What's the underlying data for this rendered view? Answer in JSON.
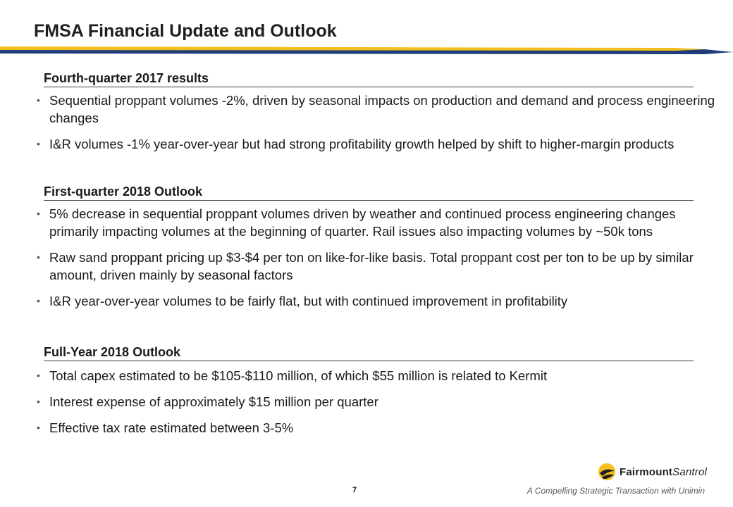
{
  "slide": {
    "title": "FMSA Financial Update and Outlook",
    "brand_colors": {
      "gold": "#f2c01e",
      "navy": "#1f3d7a"
    }
  },
  "sections": [
    {
      "heading": "Fourth-quarter 2017 results",
      "bullets": [
        "Sequential proppant volumes -2%, driven by seasonal impacts on production and demand and process engineering changes",
        "I&R volumes -1% year-over-year but had strong profitability growth helped by shift to higher-margin products"
      ]
    },
    {
      "heading": "First-quarter 2018 Outlook",
      "bullets": [
        "5% decrease in sequential proppant volumes driven by weather and continued process engineering changes primarily impacting volumes at the beginning of quarter. Rail issues also impacting volumes by ~50k tons",
        "Raw sand proppant pricing up $3-$4 per ton on like-for-like basis. Total proppant cost per ton to be up by similar amount, driven mainly by seasonal factors",
        "I&R year-over-year volumes to be fairly flat, but with continued improvement in profitability"
      ]
    },
    {
      "heading": "Full-Year 2018 Outlook",
      "bullets": [
        "Total capex estimated to be $105-$110 million, of which $55 million is related to Kermit",
        "Interest expense of approximately $15 million per quarter",
        "Effective tax rate estimated between 3-5%"
      ]
    }
  ],
  "footer": {
    "page_number": "7",
    "tagline": "A Compelling Strategic Transaction with Unimin",
    "logo_bold": "Fairmount",
    "logo_italic": "Santrol"
  }
}
